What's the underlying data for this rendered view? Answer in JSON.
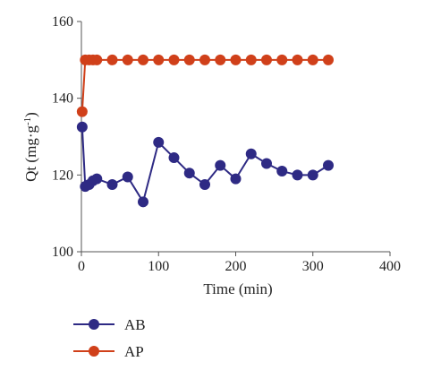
{
  "chart_data": {
    "type": "line",
    "xlabel": "Time (min)",
    "ylabel": "Qt (mg·g",
    "ylabel_sup": "-1",
    "ylabel_close": ")",
    "xlim": [
      0,
      400
    ],
    "ylim": [
      100,
      160
    ],
    "xticks": [
      0,
      100,
      200,
      300,
      400
    ],
    "yticks": [
      100,
      120,
      140,
      160
    ],
    "grid": false,
    "legend_position": "bottom-left",
    "series": [
      {
        "name": "AB",
        "color": "#2e2a84",
        "x": [
          1,
          5,
          10,
          15,
          20,
          40,
          60,
          80,
          100,
          120,
          140,
          160,
          180,
          200,
          220,
          240,
          260,
          280,
          300,
          320
        ],
        "y": [
          132.5,
          117,
          117.5,
          118.5,
          119,
          117.5,
          119.5,
          113,
          128.5,
          124.5,
          120.5,
          117.5,
          122.5,
          119,
          125.5,
          123,
          121,
          120,
          120,
          122.5
        ]
      },
      {
        "name": "AP",
        "color": "#d0401a",
        "x": [
          1,
          5,
          10,
          15,
          20,
          40,
          60,
          80,
          100,
          120,
          140,
          160,
          180,
          200,
          220,
          240,
          260,
          280,
          300,
          320
        ],
        "y": [
          136.5,
          150,
          150,
          150,
          150,
          150,
          150,
          150,
          150,
          150,
          150,
          150,
          150,
          150,
          150,
          150,
          150,
          150,
          150,
          150
        ]
      }
    ]
  }
}
